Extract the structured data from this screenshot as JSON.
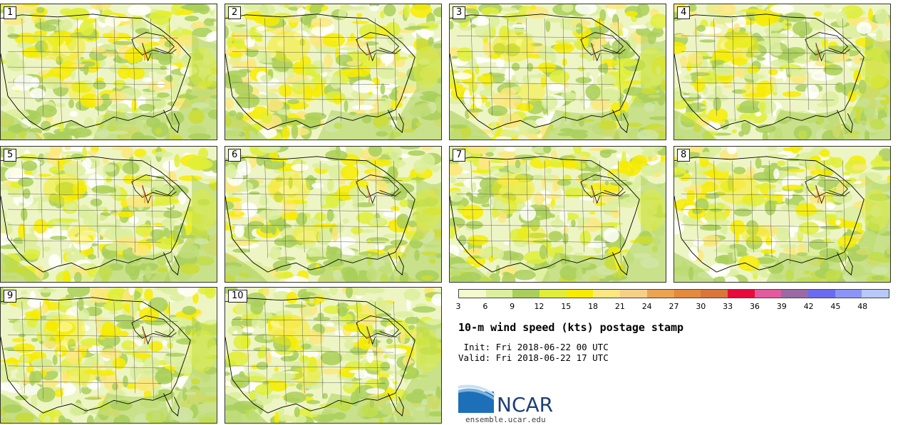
{
  "members": [
    "1",
    "2",
    "3",
    "4",
    "5",
    "6",
    "7",
    "8",
    "9",
    "10"
  ],
  "colorbar": {
    "colors": [
      "#f3f8cd",
      "#dcef9e",
      "#a9cf5b",
      "#dfee3a",
      "#f7ec00",
      "#fbe77d",
      "#f6d087",
      "#eba352",
      "#e48a3c",
      "#d9763a",
      "#e80b3b",
      "#e45a9e",
      "#9a6aa5",
      "#6b6bef",
      "#8c95f5",
      "#b8c8f9"
    ],
    "ticks": [
      "3",
      "6",
      "9",
      "12",
      "15",
      "18",
      "21",
      "24",
      "27",
      "30",
      "33",
      "36",
      "39",
      "42",
      "45",
      "48"
    ]
  },
  "title": "10-m wind speed (kts) postage stamp",
  "init": " Init: Fri 2018-06-22 00 UTC",
  "valid": "Valid: Fri 2018-06-22 17 UTC",
  "logo": {
    "text": "NCAR",
    "url": "ensemble.ucar.edu"
  }
}
